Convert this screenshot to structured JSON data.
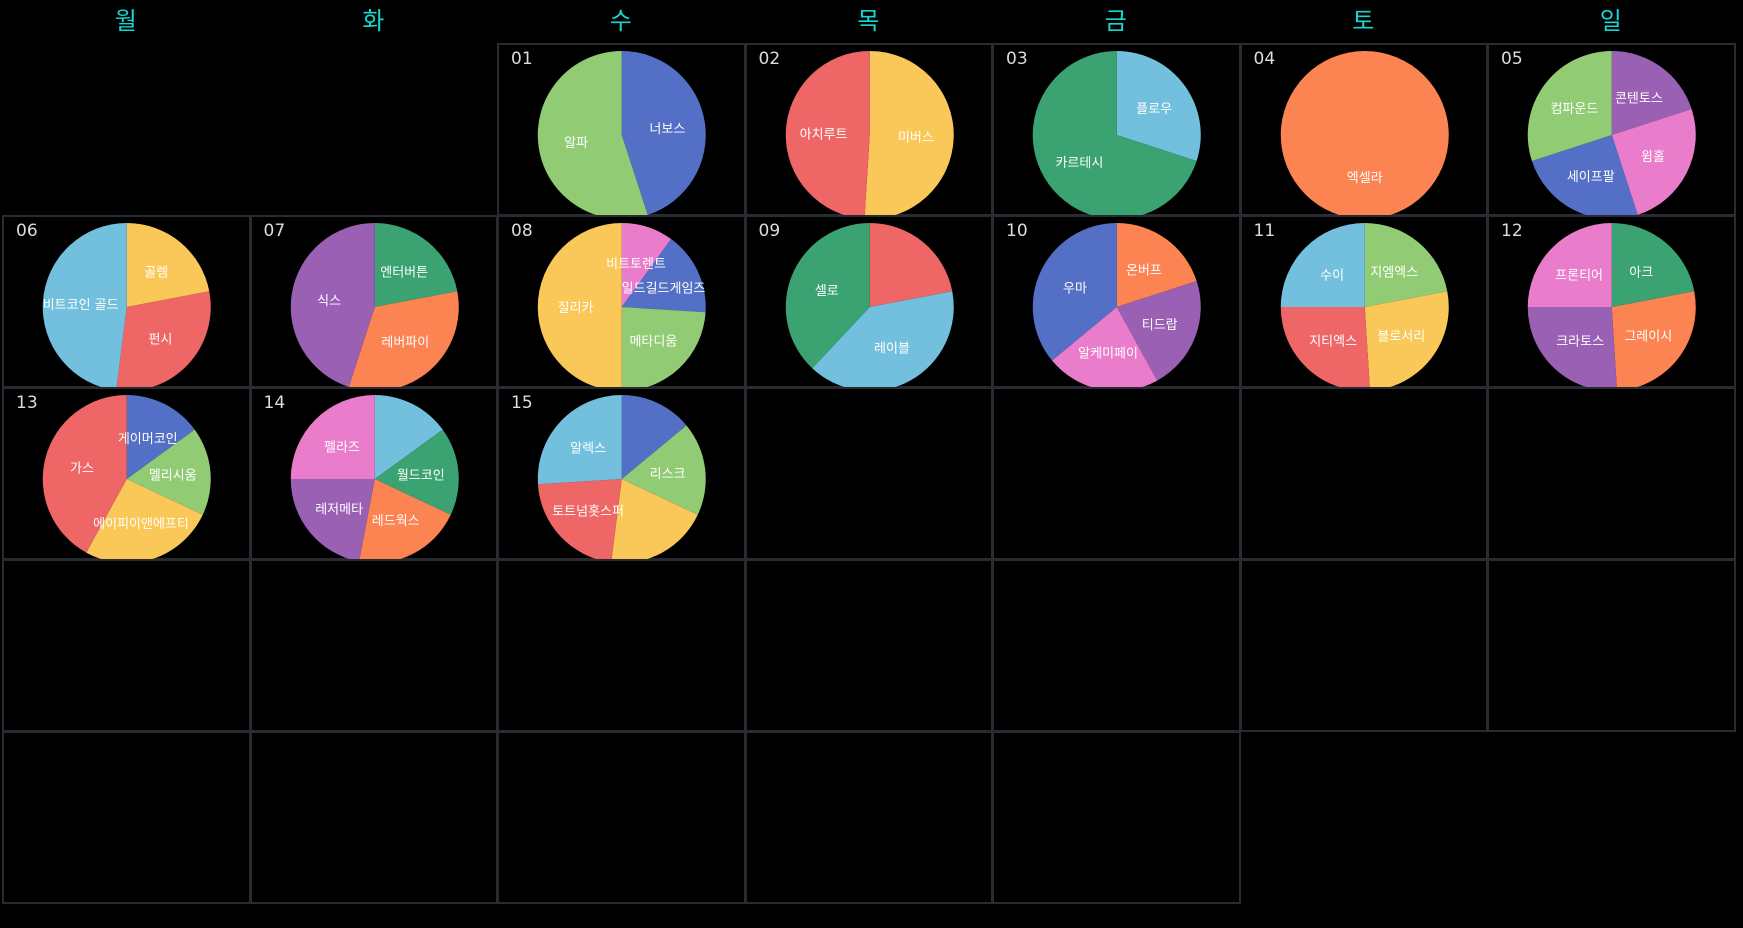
{
  "weekdays": [
    "월",
    "화",
    "수",
    "목",
    "금",
    "토",
    "일"
  ],
  "colors": {
    "background": "#000000",
    "weekday_text": "#16d6d0",
    "cell_border": "#2a2a32",
    "day_number": "#dcdcdc",
    "label": "#ffffff",
    "palette": [
      "#5470c6",
      "#91cc75",
      "#fac858",
      "#ee6666",
      "#73c0de",
      "#3ba272",
      "#fc8452",
      "#9a60b4",
      "#ea7ccc"
    ]
  },
  "chart_data": {
    "type": "pie",
    "layout": "calendar",
    "days": [
      {
        "day": "01",
        "slices": [
          {
            "name": "너보스",
            "value": 45,
            "color": "#5470c6"
          },
          {
            "name": "알파",
            "value": 55,
            "color": "#91cc75"
          }
        ]
      },
      {
        "day": "02",
        "slices": [
          {
            "name": "미버스",
            "value": 51,
            "color": "#fac858"
          },
          {
            "name": "아치루트",
            "value": 49,
            "color": "#ee6666"
          }
        ]
      },
      {
        "day": "03",
        "slices": [
          {
            "name": "플로우",
            "value": 30,
            "color": "#73c0de"
          },
          {
            "name": "카르테시",
            "value": 70,
            "color": "#3ba272"
          }
        ]
      },
      {
        "day": "04",
        "slices": [
          {
            "name": "엑셀라",
            "value": 100,
            "color": "#fc8452"
          }
        ]
      },
      {
        "day": "05",
        "slices": [
          {
            "name": "콘텐토스",
            "value": 20,
            "color": "#9a60b4"
          },
          {
            "name": "윔홀",
            "value": 25,
            "color": "#ea7ccc"
          },
          {
            "name": "세이프팔",
            "value": 25,
            "color": "#5470c6"
          },
          {
            "name": "컴파운드",
            "value": 30,
            "color": "#91cc75"
          }
        ]
      },
      {
        "day": "06",
        "slices": [
          {
            "name": "골렘",
            "value": 22,
            "color": "#fac858"
          },
          {
            "name": "펀시",
            "value": 30,
            "color": "#ee6666"
          },
          {
            "name": "비트코인 골드",
            "value": 48,
            "color": "#73c0de"
          }
        ]
      },
      {
        "day": "07",
        "slices": [
          {
            "name": "엔터버튼",
            "value": 22,
            "color": "#3ba272"
          },
          {
            "name": "레버파이",
            "value": 33,
            "color": "#fc8452"
          },
          {
            "name": "식스",
            "value": 45,
            "color": "#9a60b4"
          }
        ]
      },
      {
        "day": "08",
        "slices": [
          {
            "name": "비트토렌트",
            "value": 10,
            "color": "#ea7ccc"
          },
          {
            "name": "일드길드게임즈",
            "value": 16,
            "color": "#5470c6"
          },
          {
            "name": "메타디움",
            "value": 24,
            "color": "#91cc75"
          },
          {
            "name": "질리카",
            "value": 50,
            "color": "#fac858"
          }
        ]
      },
      {
        "day": "09",
        "slices": [
          {
            "name": "",
            "value": 22,
            "color": "#ee6666"
          },
          {
            "name": "레이블",
            "value": 40,
            "color": "#73c0de"
          },
          {
            "name": "셀로",
            "value": 38,
            "color": "#3ba272"
          }
        ]
      },
      {
        "day": "10",
        "slices": [
          {
            "name": "온버프",
            "value": 20,
            "color": "#fc8452"
          },
          {
            "name": "티드랍",
            "value": 22,
            "color": "#9a60b4"
          },
          {
            "name": "알케미페이",
            "value": 22,
            "color": "#ea7ccc"
          },
          {
            "name": "우마",
            "value": 36,
            "color": "#5470c6"
          }
        ]
      },
      {
        "day": "11",
        "slices": [
          {
            "name": "지엠엑스",
            "value": 22,
            "color": "#91cc75"
          },
          {
            "name": "블로서리",
            "value": 27,
            "color": "#fac858"
          },
          {
            "name": "지티엑스",
            "value": 26,
            "color": "#ee6666"
          },
          {
            "name": "수이",
            "value": 25,
            "color": "#73c0de"
          }
        ]
      },
      {
        "day": "12",
        "slices": [
          {
            "name": "아크",
            "value": 22,
            "color": "#3ba272"
          },
          {
            "name": "그레이시",
            "value": 27,
            "color": "#fc8452"
          },
          {
            "name": "크라토스",
            "value": 26,
            "color": "#9a60b4"
          },
          {
            "name": "프론티어",
            "value": 25,
            "color": "#ea7ccc"
          }
        ]
      },
      {
        "day": "13",
        "slices": [
          {
            "name": "게이머코인",
            "value": 15,
            "color": "#5470c6"
          },
          {
            "name": "멜리시움",
            "value": 17,
            "color": "#91cc75"
          },
          {
            "name": "에이피이앤에프티",
            "value": 26,
            "color": "#fac858"
          },
          {
            "name": "가스",
            "value": 42,
            "color": "#ee6666"
          }
        ]
      },
      {
        "day": "14",
        "slices": [
          {
            "name": "",
            "value": 15,
            "color": "#73c0de"
          },
          {
            "name": "월드코인",
            "value": 17,
            "color": "#3ba272"
          },
          {
            "name": "레드웍스",
            "value": 21,
            "color": "#fc8452"
          },
          {
            "name": "레저메타",
            "value": 22,
            "color": "#9a60b4"
          },
          {
            "name": "펠라즈",
            "value": 25,
            "color": "#ea7ccc"
          }
        ]
      },
      {
        "day": "15",
        "slices": [
          {
            "name": "",
            "value": 14,
            "color": "#5470c6"
          },
          {
            "name": "리스크",
            "value": 18,
            "color": "#91cc75"
          },
          {
            "name": "",
            "value": 20,
            "color": "#fac858"
          },
          {
            "name": "토트넘홋스퍼",
            "value": 22,
            "color": "#ee6666"
          },
          {
            "name": "알렉스",
            "value": 26,
            "color": "#73c0de"
          }
        ]
      }
    ]
  }
}
